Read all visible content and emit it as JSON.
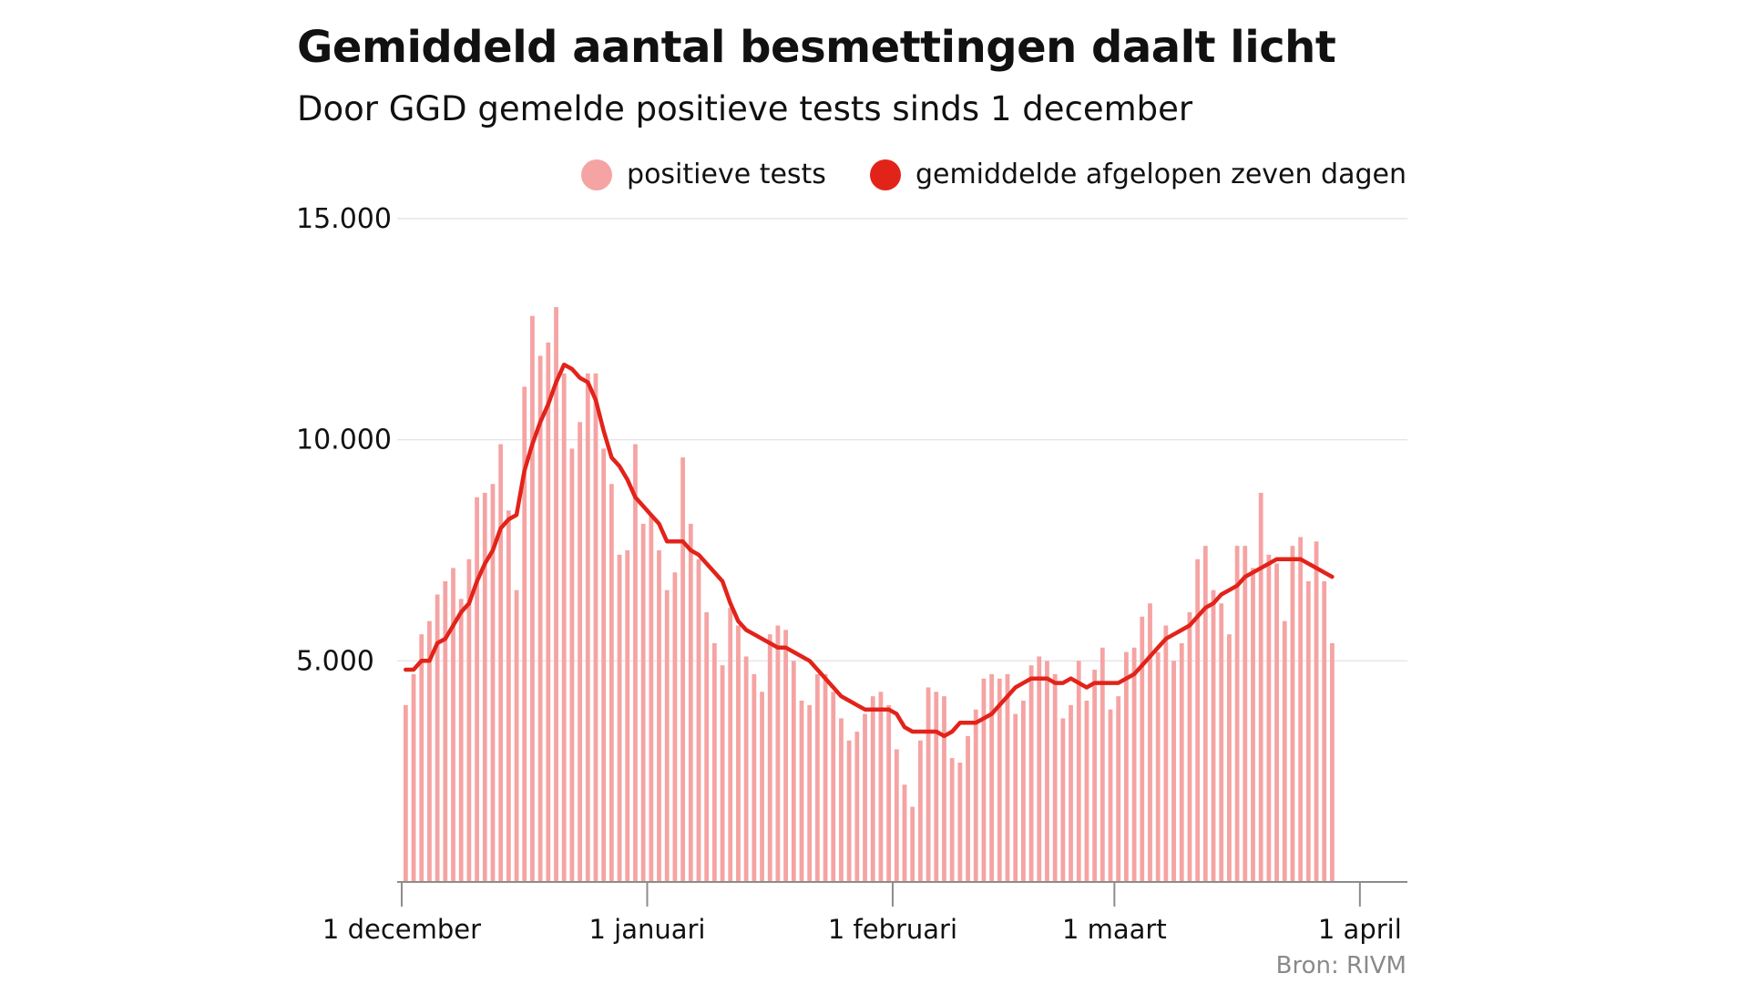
{
  "header": {
    "title": "Gemiddeld aantal besmettingen daalt licht",
    "subtitle": "Door GGD gemelde positieve tests sinds 1 december"
  },
  "footer": {
    "source": "Bron: RIVM"
  },
  "colors": {
    "bars": "#f5a3a3",
    "line": "#e2231a",
    "grid": "#e6e6e6",
    "axis": "#8c8c8c"
  },
  "chart_data": {
    "type": "bar",
    "title": "Gemiddeld aantal besmettingen daalt licht",
    "subtitle": "Door GGD gemelde positieve tests sinds 1 december",
    "x_start": "2020-12-01",
    "x_end": "2021-04-06",
    "ylim": [
      0,
      15000
    ],
    "yticks": [
      {
        "value": 5000,
        "label": "5.000"
      },
      {
        "value": 10000,
        "label": "10.000"
      },
      {
        "value": 15000,
        "label": "15.000"
      }
    ],
    "xticks": [
      {
        "date": "2020-12-01",
        "label": "1 december"
      },
      {
        "date": "2021-01-01",
        "label": "1 januari"
      },
      {
        "date": "2021-02-01",
        "label": "1 februari"
      },
      {
        "date": "2021-03-01",
        "label": "1 maart"
      },
      {
        "date": "2021-04-01",
        "label": "1 april"
      }
    ],
    "grid": true,
    "legend_position": "top-right",
    "series": [
      {
        "name": "positieve tests",
        "type": "bar",
        "color": "#f5a3a3",
        "values": [
          4000,
          4700,
          5600,
          5900,
          6500,
          6800,
          7100,
          6400,
          7300,
          8700,
          8800,
          9000,
          9900,
          8400,
          6600,
          11200,
          12800,
          11900,
          12200,
          13000,
          11500,
          9800,
          10400,
          11500,
          11500,
          9800,
          9000,
          7400,
          7500,
          9900,
          8100,
          8300,
          7500,
          6600,
          7000,
          9600,
          8100,
          7300,
          6100,
          5400,
          4900,
          6200,
          5800,
          5100,
          4700,
          4300,
          5600,
          5800,
          5700,
          5000,
          4100,
          4000,
          4700,
          4700,
          4300,
          3700,
          3200,
          3400,
          3800,
          4200,
          4300,
          4000,
          3000,
          2200,
          1700,
          3200,
          4400,
          4300,
          4200,
          2800,
          2700,
          3300,
          3900,
          4600,
          4700,
          4600,
          4700,
          3800,
          4100,
          4900,
          5100,
          5000,
          4700,
          3700,
          4000,
          5000,
          4100,
          4800,
          5300,
          3900,
          4200,
          5200,
          5300,
          6000,
          6300,
          5200,
          5800,
          5000,
          5400,
          6100,
          7300,
          7600,
          6600,
          6300,
          5600,
          7600,
          7600,
          7100,
          8800,
          7400,
          7200,
          5900,
          7600,
          7800,
          6800,
          7700,
          6800,
          5400
        ]
      },
      {
        "name": "gemiddelde afgelopen zeven dagen",
        "type": "line",
        "color": "#e2231a",
        "values": [
          4800,
          4800,
          5000,
          5000,
          5400,
          5500,
          5800,
          6100,
          6300,
          6800,
          7200,
          7500,
          8000,
          8200,
          8300,
          9300,
          9900,
          10400,
          10800,
          11300,
          11700,
          11600,
          11400,
          11300,
          10900,
          10200,
          9600,
          9400,
          9100,
          8700,
          8500,
          8300,
          8100,
          7700,
          7700,
          7700,
          7500,
          7400,
          7200,
          7000,
          6800,
          6300,
          5900,
          5700,
          5600,
          5500,
          5400,
          5300,
          5300,
          5200,
          5100,
          5000,
          4800,
          4600,
          4400,
          4200,
          4100,
          4000,
          3900,
          3900,
          3900,
          3900,
          3800,
          3500,
          3400,
          3400,
          3400,
          3400,
          3300,
          3400,
          3600,
          3600,
          3600,
          3700,
          3800,
          4000,
          4200,
          4400,
          4500,
          4600,
          4600,
          4600,
          4500,
          4500,
          4600,
          4500,
          4400,
          4500,
          4500,
          4500,
          4500,
          4600,
          4700,
          4900,
          5100,
          5300,
          5500,
          5600,
          5700,
          5800,
          6000,
          6200,
          6300,
          6500,
          6600,
          6700,
          6900,
          7000,
          7100,
          7200,
          7300,
          7300,
          7300,
          7300,
          7200,
          7100,
          7000,
          6900
        ]
      }
    ]
  }
}
